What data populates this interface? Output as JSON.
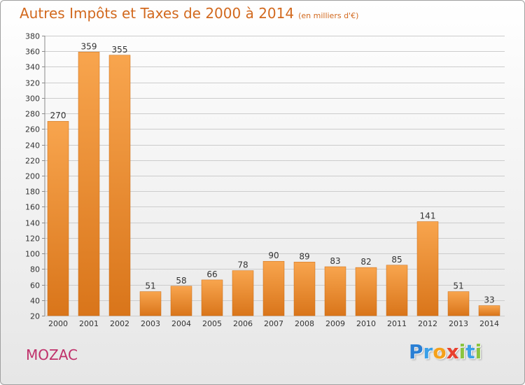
{
  "header": {
    "title": "Autres Impôts et Taxes de 2000 à 2014",
    "subtitle": "(en milliers d'€)"
  },
  "footer": {
    "commune": "MOZAC",
    "logo_letters": [
      {
        "char": "P",
        "color": "#2a7fd4"
      },
      {
        "char": "r",
        "color": "#3aa0e8"
      },
      {
        "char": "o",
        "color": "#f5a11a"
      },
      {
        "char": "x",
        "color": "#e8402e"
      },
      {
        "char": "i",
        "color": "#8ac43f"
      },
      {
        "char": "t",
        "color": "#3aa0e8"
      },
      {
        "char": "i",
        "color": "#8ac43f"
      }
    ]
  },
  "chart_data": {
    "type": "bar",
    "title": "Autres Impôts et Taxes de 2000 à 2014",
    "subtitle": "(en milliers d'€)",
    "xlabel": "",
    "ylabel": "",
    "categories": [
      "2000",
      "2001",
      "2002",
      "2003",
      "2004",
      "2005",
      "2006",
      "2007",
      "2008",
      "2009",
      "2010",
      "2011",
      "2012",
      "2013",
      "2014"
    ],
    "values": [
      270,
      359,
      355,
      51,
      58,
      66,
      78,
      90,
      89,
      83,
      82,
      85,
      141,
      51,
      33
    ],
    "ylim": [
      20,
      380
    ],
    "yticks": [
      20,
      40,
      60,
      80,
      100,
      120,
      140,
      160,
      180,
      200,
      220,
      240,
      260,
      280,
      300,
      320,
      340,
      360,
      380
    ],
    "grid": true,
    "bar_color": "#f0922a",
    "bar_color_dark": "#d97a18"
  }
}
